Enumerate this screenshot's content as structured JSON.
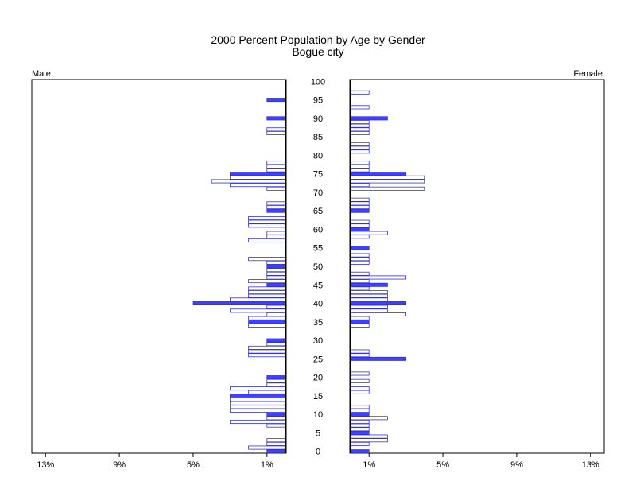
{
  "chart_data": {
    "type": "bar",
    "title": "2000 Percent Population by Age by Gender",
    "subtitle": "Bogue city",
    "left_label": "Male",
    "right_label": "Female",
    "ages": [
      0,
      1,
      2,
      3,
      4,
      5,
      6,
      7,
      8,
      9,
      10,
      11,
      12,
      13,
      14,
      15,
      16,
      17,
      18,
      19,
      20,
      21,
      22,
      23,
      24,
      25,
      26,
      27,
      28,
      29,
      30,
      31,
      32,
      33,
      34,
      35,
      36,
      37,
      38,
      39,
      40,
      41,
      42,
      43,
      44,
      45,
      46,
      47,
      48,
      49,
      50,
      51,
      52,
      53,
      54,
      55,
      56,
      57,
      58,
      59,
      60,
      61,
      62,
      63,
      64,
      65,
      66,
      67,
      68,
      69,
      70,
      71,
      72,
      73,
      74,
      75,
      76,
      77,
      78,
      79,
      80,
      81,
      82,
      83,
      84,
      85,
      86,
      87,
      88,
      89,
      90,
      91,
      92,
      93,
      94,
      95,
      96,
      97,
      98,
      99,
      100
    ],
    "highlight_every": 5,
    "age_tick_labels": [
      "0",
      "5",
      "10",
      "15",
      "20",
      "25",
      "30",
      "35",
      "40",
      "45",
      "50",
      "55",
      "60",
      "65",
      "70",
      "75",
      "80",
      "85",
      "90",
      "95",
      "100"
    ],
    "x_tick_labels": [
      "13%",
      "9%",
      "5%",
      "1%"
    ],
    "female_x_tick_labels": [
      "1%",
      "5%",
      "9%",
      "13%"
    ],
    "x_max": 14,
    "series": [
      {
        "name": "Male",
        "values": [
          1,
          2,
          1,
          1,
          0,
          0,
          0,
          1,
          3,
          1,
          1,
          3,
          3,
          3,
          3,
          3,
          2,
          3,
          1,
          1,
          1,
          0,
          0,
          0,
          0,
          0,
          2,
          2,
          2,
          1,
          1,
          0,
          0,
          0,
          2,
          2,
          2,
          1,
          3,
          1,
          5,
          3,
          2,
          2,
          2,
          1,
          2,
          1,
          1,
          1,
          1,
          1,
          2,
          0,
          0,
          0,
          0,
          2,
          1,
          1,
          0,
          2,
          2,
          2,
          0,
          1,
          1,
          1,
          0,
          0,
          0,
          1,
          3,
          4,
          3,
          3,
          1,
          1,
          1,
          0,
          0,
          0,
          0,
          0,
          0,
          0,
          1,
          1,
          0,
          0,
          1,
          0,
          0,
          0,
          0,
          1,
          0,
          0,
          0,
          0,
          0
        ]
      },
      {
        "name": "Female",
        "values": [
          1,
          0,
          1,
          2,
          2,
          1,
          1,
          1,
          1,
          2,
          1,
          1,
          1,
          0,
          0,
          0,
          1,
          1,
          0,
          1,
          0,
          1,
          0,
          0,
          0,
          3,
          1,
          1,
          0,
          0,
          0,
          0,
          0,
          0,
          1,
          1,
          1,
          3,
          2,
          2,
          3,
          2,
          2,
          2,
          1,
          2,
          1,
          3,
          1,
          0,
          0,
          1,
          1,
          1,
          0,
          1,
          0,
          0,
          1,
          2,
          1,
          1,
          1,
          0,
          0,
          1,
          1,
          1,
          1,
          0,
          0,
          4,
          1,
          4,
          4,
          3,
          1,
          1,
          1,
          0,
          0,
          1,
          1,
          1,
          0,
          0,
          1,
          1,
          1,
          1,
          2,
          0,
          0,
          1,
          0,
          0,
          0,
          1,
          0,
          0,
          0
        ]
      }
    ],
    "bar_color": "#4040ff",
    "outline_color": "#3030e0"
  }
}
